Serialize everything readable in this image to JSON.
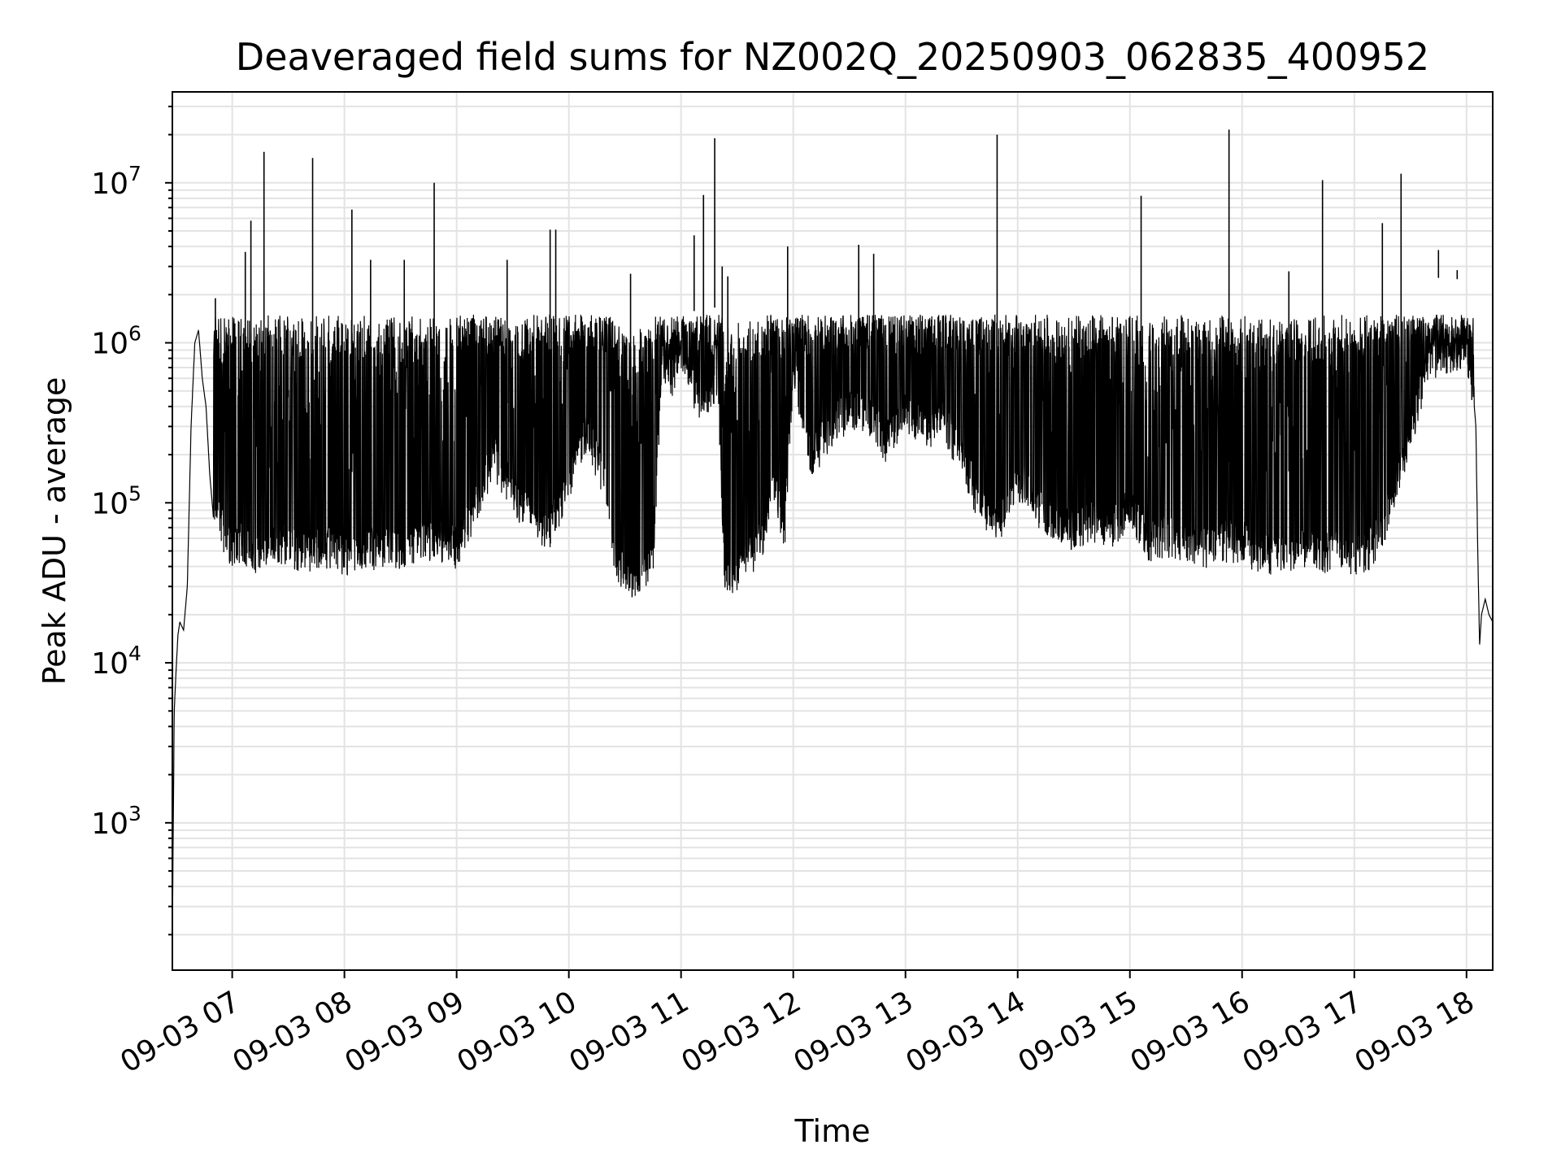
{
  "chart_data": {
    "type": "line",
    "title": "Deaveraged field sums for NZ002Q_20250903_062835_400952",
    "xlabel": "Time",
    "ylabel": "Peak ADU - average",
    "yscale": "log",
    "ylim": [
      120,
      37000000
    ],
    "xlim": [
      "09-03 06:28",
      "09-03 18:14"
    ],
    "grid": true,
    "legend": "none",
    "line_color": "#000000",
    "grid_color": "#e3e3e3",
    "x_ticks": [
      {
        "label": "09-03 07",
        "x": "09-03 07:00"
      },
      {
        "label": "09-03 08",
        "x": "09-03 08:00"
      },
      {
        "label": "09-03 09",
        "x": "09-03 09:00"
      },
      {
        "label": "09-03 10",
        "x": "09-03 10:00"
      },
      {
        "label": "09-03 11",
        "x": "09-03 11:00"
      },
      {
        "label": "09-03 12",
        "x": "09-03 12:00"
      },
      {
        "label": "09-03 13",
        "x": "09-03 13:00"
      },
      {
        "label": "09-03 14",
        "x": "09-03 14:00"
      },
      {
        "label": "09-03 15",
        "x": "09-03 15:00"
      },
      {
        "label": "09-03 16",
        "x": "09-03 16:00"
      },
      {
        "label": "09-03 17",
        "x": "09-03 17:00"
      },
      {
        "label": "09-03 18",
        "x": "09-03 18:00"
      }
    ],
    "y_ticks": [
      {
        "base": "10",
        "exp": "3",
        "value": 1000
      },
      {
        "base": "10",
        "exp": "4",
        "value": 10000
      },
      {
        "base": "10",
        "exp": "5",
        "value": 100000
      },
      {
        "base": "10",
        "exp": "6",
        "value": 1000000
      },
      {
        "base": "10",
        "exp": "7",
        "value": 10000000
      }
    ],
    "series": [
      {
        "x": [
          "06:28",
          "06:29",
          "06:30",
          "06:31",
          "06:32",
          "06:34",
          "06:36",
          "06:38",
          "06:40",
          "06:42",
          "06:44",
          "06:46",
          "06:48",
          "06:50",
          "06:52",
          "06:55",
          "06:58",
          "07:02",
          "07:05",
          "07:08",
          "07:12",
          "07:15",
          "07:20",
          "07:25",
          "07:30",
          "07:40",
          "07:50",
          "08:00",
          "08:10",
          "08:20",
          "08:30",
          "08:40",
          "08:50",
          "09:00",
          "09:10",
          "09:20",
          "09:30",
          "09:40",
          "09:50",
          "10:00",
          "10:10",
          "10:20",
          "10:25",
          "10:30",
          "10:35",
          "10:40",
          "10:45",
          "10:50",
          "10:55",
          "11:00",
          "11:10",
          "11:20",
          "11:23",
          "11:28",
          "11:33",
          "11:38",
          "11:43",
          "11:50",
          "11:55",
          "12:00",
          "12:10",
          "12:20",
          "12:30",
          "12:40",
          "12:50",
          "13:00",
          "13:10",
          "13:20",
          "13:30",
          "13:40",
          "13:50",
          "14:00",
          "14:10",
          "14:20",
          "14:30",
          "14:40",
          "14:50",
          "15:00",
          "15:10",
          "15:20",
          "15:30",
          "15:40",
          "15:50",
          "16:00",
          "16:10",
          "16:20",
          "16:30",
          "16:40",
          "16:50",
          "17:00",
          "17:10",
          "17:20",
          "17:30",
          "17:40",
          "17:50",
          "18:00",
          "18:03",
          "18:05",
          "18:06",
          "18:07",
          "18:08",
          "18:10",
          "18:12",
          "18:14"
        ],
        "values": [
          200,
          5000,
          9000,
          15000,
          18000,
          16000,
          30000,
          300000,
          1000000,
          1200000,
          600000,
          400000,
          150000,
          80000,
          100000,
          70000,
          60000,
          55000,
          60000,
          55000,
          50000,
          55000,
          52000,
          60000,
          55000,
          50000,
          55000,
          50000,
          55000,
          52000,
          55000,
          60000,
          60000,
          55000,
          100000,
          200000,
          120000,
          80000,
          70000,
          150000,
          300000,
          120000,
          45000,
          40000,
          35000,
          40000,
          45000,
          900000,
          600000,
          1000000,
          400000,
          600000,
          40000,
          38000,
          45000,
          50000,
          60000,
          150000,
          60000,
          700000,
          200000,
          300000,
          400000,
          350000,
          250000,
          400000,
          300000,
          350000,
          200000,
          100000,
          80000,
          150000,
          100000,
          80000,
          70000,
          80000,
          70000,
          100000,
          60000,
          65000,
          60000,
          55000,
          60000,
          60000,
          50000,
          50000,
          55000,
          50000,
          52000,
          50000,
          55000,
          100000,
          300000,
          800000,
          900000,
          1000000,
          600000,
          300000,
          50000,
          13000,
          20000,
          25000,
          20000,
          18000
        ]
      },
      {
        "x": [
          "06:51",
          "07:07",
          "07:10",
          "07:17",
          "07:43",
          "08:04",
          "08:14",
          "08:32",
          "08:48",
          "09:27",
          "09:50",
          "09:53",
          "10:33",
          "11:07",
          "11:12",
          "11:18",
          "11:22",
          "11:25",
          "11:57",
          "12:35",
          "12:43",
          "13:49",
          "15:06",
          "15:53",
          "16:25",
          "16:43",
          "17:15",
          "17:25",
          "17:45",
          "17:55"
        ],
        "values": [
          1900000,
          3700000,
          5800000,
          15600000,
          14300000,
          6800000,
          3300000,
          3300000,
          10000000,
          3300000,
          5100000,
          5100000,
          2700000,
          4700000,
          8400000,
          19000000,
          3000000,
          2600000,
          4000000,
          4100000,
          3600000,
          20000000,
          8300000,
          21500000,
          2800000,
          10400000,
          5600000,
          11400000,
          3800000,
          2500000
        ]
      }
    ]
  }
}
